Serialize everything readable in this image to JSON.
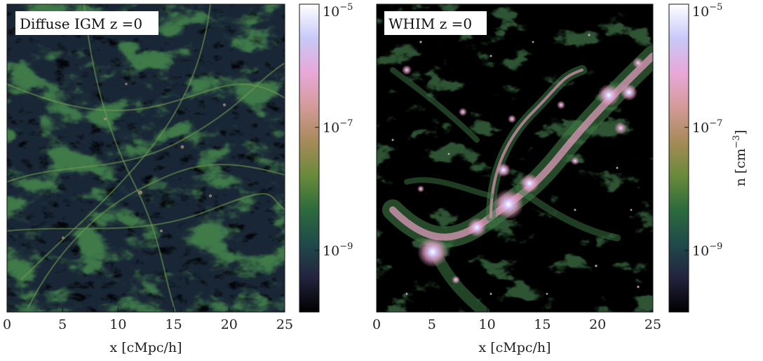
{
  "chart_data": [
    {
      "type": "heatmap",
      "title": "Diffuse IGM z =0",
      "xlabel": "x [cMpc/h]",
      "ylabel": "",
      "xlim": [
        0,
        25
      ],
      "xticks": [
        0,
        5,
        10,
        15,
        20,
        25
      ],
      "colorbar": {
        "label": "",
        "scale": "log",
        "range": [
          1e-10,
          1e-05
        ],
        "ticks": [
          {
            "value": 1e-05,
            "label": "10^-5",
            "base": "10",
            "exp": "−5"
          },
          {
            "value": 1e-07,
            "label": "10^-7",
            "base": "10",
            "exp": "−7"
          },
          {
            "value": 1e-09,
            "label": "10^-9",
            "base": "10",
            "exp": "−9"
          }
        ],
        "colormap": [
          "#000000",
          "#23233f",
          "#1f4a4a",
          "#2d6b3c",
          "#6a8a3a",
          "#a88a5a",
          "#d49a9a",
          "#e8a8d8",
          "#c8c8f8",
          "#ffffff"
        ]
      }
    },
    {
      "type": "heatmap",
      "title": "WHIM z =0",
      "xlabel": "x [cMpc/h]",
      "ylabel": "",
      "xlim": [
        0,
        25
      ],
      "xticks": [
        0,
        5,
        10,
        15,
        20,
        25
      ],
      "colorbar": {
        "label": "n [cm^-3]",
        "label_text": "n [cm",
        "label_exp": "−3",
        "label_close": "]",
        "scale": "log",
        "range": [
          1e-10,
          1e-05
        ],
        "ticks": [
          {
            "value": 1e-05,
            "label": "10^-5",
            "base": "10",
            "exp": "−5"
          },
          {
            "value": 1e-07,
            "label": "10^-7",
            "base": "10",
            "exp": "−7"
          },
          {
            "value": 1e-09,
            "label": "10^-9",
            "base": "10",
            "exp": "−9"
          }
        ],
        "colormap": [
          "#000000",
          "#23233f",
          "#1f4a4a",
          "#2d6b3c",
          "#6a8a3a",
          "#a88a5a",
          "#d49a9a",
          "#e8a8d8",
          "#c8c8f8",
          "#ffffff"
        ]
      }
    }
  ]
}
